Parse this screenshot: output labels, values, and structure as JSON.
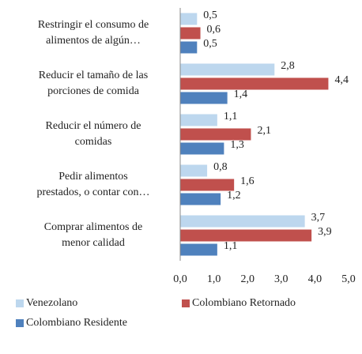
{
  "chart_data": {
    "type": "hbar",
    "categories": [
      "Restringir el consumo de\nalimentos de algún…",
      "Reducir el tamaño de las\nporciones de comida",
      "Reducir el número de\ncomidas",
      "Pedir alimentos\nprestados, o contar con…",
      "Comprar alimentos de\nmenor calidad"
    ],
    "series": [
      {
        "name": "Venezolano",
        "color": "#bdd7ee",
        "values": [
          0.5,
          2.8,
          1.1,
          0.8,
          3.7
        ],
        "value_labels": [
          "0,5",
          "2,8",
          "1,1",
          "0,8",
          "3,7"
        ]
      },
      {
        "name": "Colombiano Retornado",
        "color": "#c0504d",
        "values": [
          0.6,
          4.4,
          2.1,
          1.6,
          3.9
        ],
        "value_labels": [
          "0,6",
          "4,4",
          "2,1",
          "1,6",
          "3,9"
        ]
      },
      {
        "name": "Colombiano Residente",
        "color": "#4f81bd",
        "values": [
          0.5,
          1.4,
          1.3,
          1.2,
          1.1
        ],
        "value_labels": [
          "0,5",
          "1,4",
          "1,3",
          "1,2",
          "1,1"
        ]
      }
    ],
    "xlim": [
      0,
      5
    ],
    "xticks": [
      {
        "value": 0,
        "label": "0,0"
      },
      {
        "value": 1,
        "label": "1,0"
      },
      {
        "value": 2,
        "label": "2,0"
      },
      {
        "value": 3,
        "label": "3,0"
      },
      {
        "value": 4,
        "label": "4,0"
      },
      {
        "value": 5,
        "label": "5,0"
      }
    ]
  }
}
